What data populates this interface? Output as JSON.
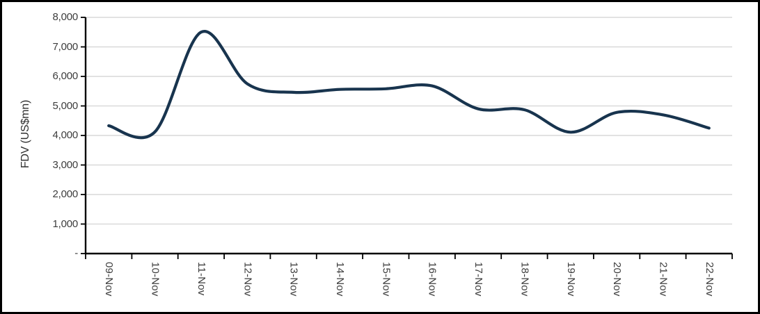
{
  "chart_data": {
    "type": "line",
    "title": "",
    "xlabel": "",
    "ylabel": "FDV (US$mn)",
    "x": [
      "09-Nov",
      "10-Nov",
      "11-Nov",
      "12-Nov",
      "13-Nov",
      "14-Nov",
      "15-Nov",
      "16-Nov",
      "17-Nov",
      "18-Nov",
      "19-Nov",
      "20-Nov",
      "21-Nov",
      "22-Nov"
    ],
    "series": [
      {
        "name": "FDV (US$mn)",
        "values": [
          4330,
          4120,
          7500,
          5750,
          5460,
          5560,
          5580,
          5680,
          4900,
          4870,
          4110,
          4780,
          4700,
          4250
        ]
      }
    ],
    "ylim": [
      0,
      8000
    ],
    "y_tick_interval": 1000,
    "y_tick_labels": [
      "-",
      "1,000",
      "2,000",
      "3,000",
      "4,000",
      "5,000",
      "6,000",
      "7,000",
      "8,000"
    ],
    "x_label_rotation": "vertical-read-down",
    "grid": "horizontal",
    "legend_position": "none",
    "smooth_line": true,
    "colors": {
      "line": "#18344e",
      "gridline": "#d9d9d9",
      "axis": "#000000",
      "tick_text": "#3d3d3d",
      "frame_border": "#000000",
      "background": "#ffffff"
    }
  }
}
